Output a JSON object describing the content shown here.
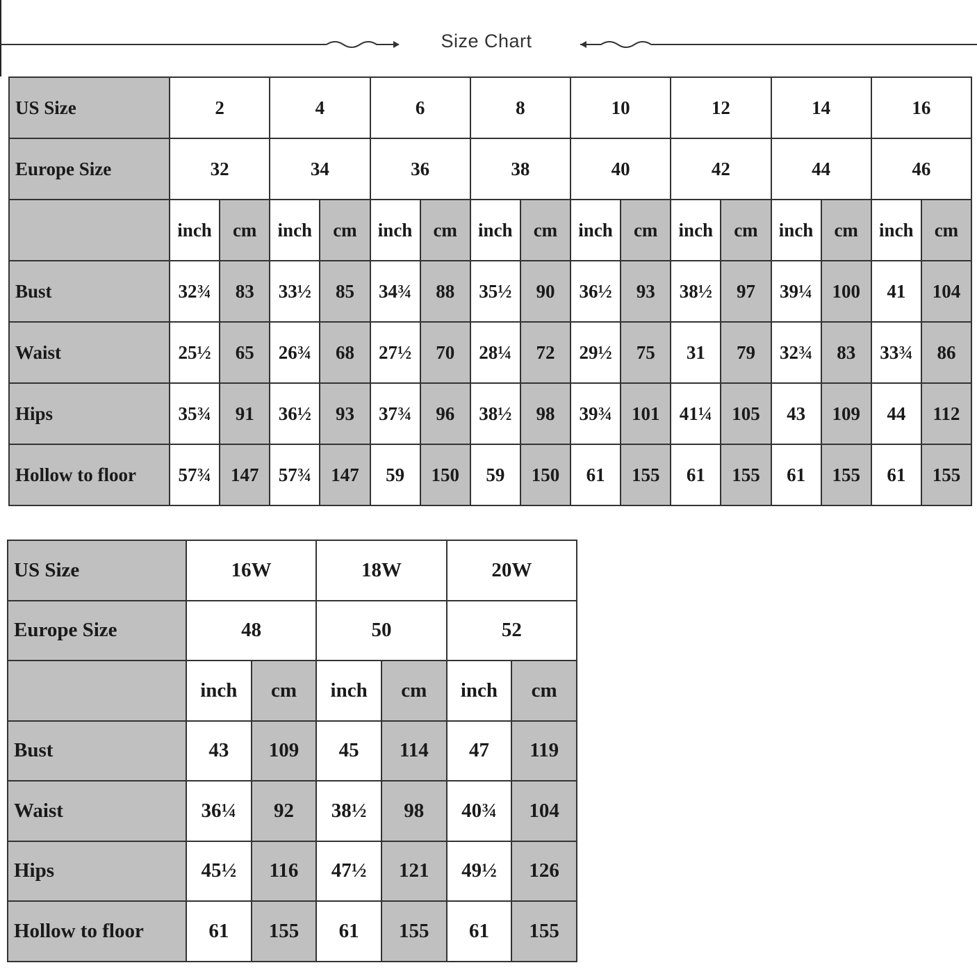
{
  "title": "Size Chart",
  "colors": {
    "shade": "#c0c0c0",
    "border": "#333333"
  },
  "table1": {
    "us_label": "US Size",
    "eu_label": "Europe Size",
    "us_sizes": [
      "2",
      "4",
      "6",
      "8",
      "10",
      "12",
      "14",
      "16"
    ],
    "eu_sizes": [
      "32",
      "34",
      "36",
      "38",
      "40",
      "42",
      "44",
      "46"
    ],
    "units": [
      "inch",
      "cm"
    ],
    "rows": [
      {
        "label": "Bust",
        "values": [
          "32¾",
          "83",
          "33½",
          "85",
          "34¾",
          "88",
          "35½",
          "90",
          "36½",
          "93",
          "38½",
          "97",
          "39¼",
          "100",
          "41",
          "104"
        ]
      },
      {
        "label": "Waist",
        "values": [
          "25½",
          "65",
          "26¾",
          "68",
          "27½",
          "70",
          "28¼",
          "72",
          "29½",
          "75",
          "31",
          "79",
          "32¾",
          "83",
          "33¾",
          "86"
        ]
      },
      {
        "label": "Hips",
        "values": [
          "35¾",
          "91",
          "36½",
          "93",
          "37¾",
          "96",
          "38½",
          "98",
          "39¾",
          "101",
          "41¼",
          "105",
          "43",
          "109",
          "44",
          "112"
        ]
      },
      {
        "label": "Hollow to floor",
        "values": [
          "57¾",
          "147",
          "57¾",
          "147",
          "59",
          "150",
          "59",
          "150",
          "61",
          "155",
          "61",
          "155",
          "61",
          "155",
          "61",
          "155"
        ]
      }
    ]
  },
  "table2": {
    "us_label": "US Size",
    "eu_label": "Europe Size",
    "us_sizes": [
      "16W",
      "18W",
      "20W"
    ],
    "eu_sizes": [
      "48",
      "50",
      "52"
    ],
    "units": [
      "inch",
      "cm"
    ],
    "rows": [
      {
        "label": "Bust",
        "values": [
          "43",
          "109",
          "45",
          "114",
          "47",
          "119"
        ]
      },
      {
        "label": "Waist",
        "values": [
          "36¼",
          "92",
          "38½",
          "98",
          "40¾",
          "104"
        ]
      },
      {
        "label": "Hips",
        "values": [
          "45½",
          "116",
          "47½",
          "121",
          "49½",
          "126"
        ]
      },
      {
        "label": "Hollow to floor",
        "values": [
          "61",
          "155",
          "61",
          "155",
          "61",
          "155"
        ]
      }
    ]
  }
}
